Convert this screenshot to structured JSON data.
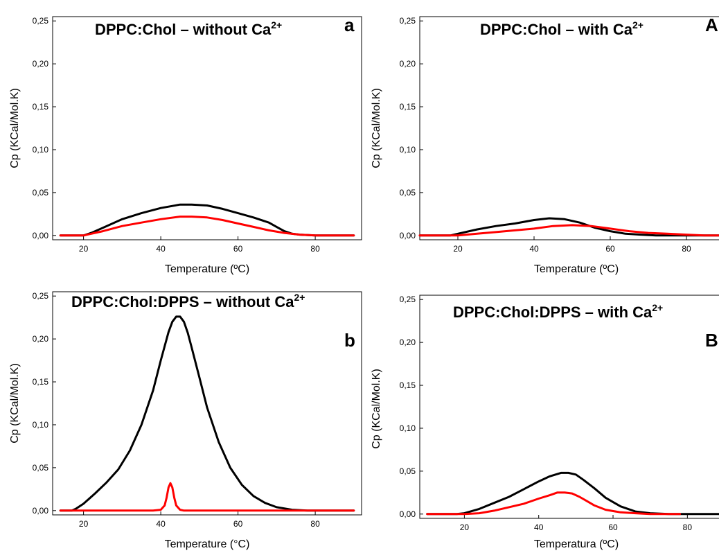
{
  "chart_data": [
    {
      "id": "a",
      "type": "line",
      "title": "DPPC:Chol – without Ca",
      "title_sup": "2+",
      "panel_letter": "a",
      "xlabel": "Temperature (ºC)",
      "ylabel": "Cp (KCal/Mol.K)",
      "xlim": [
        12,
        92
      ],
      "ylim": [
        -0.005,
        0.255
      ],
      "xticks": [
        20,
        40,
        60,
        80
      ],
      "yticks": [
        0.0,
        0.05,
        0.1,
        0.15,
        0.2,
        0.25
      ],
      "ytick_labels": [
        "0,00",
        "0,05",
        "0,10",
        "0,15",
        "0,20",
        "0,25"
      ],
      "series": [
        {
          "color": "#000000",
          "x": [
            14,
            20,
            22,
            25,
            30,
            35,
            40,
            45,
            48,
            52,
            56,
            60,
            64,
            68,
            70,
            72,
            74,
            76,
            80,
            85,
            90
          ],
          "y": [
            0.0,
            0.0,
            0.003,
            0.009,
            0.019,
            0.026,
            0.032,
            0.036,
            0.036,
            0.035,
            0.031,
            0.026,
            0.021,
            0.015,
            0.01,
            0.005,
            0.002,
            0.001,
            0.0,
            0.0,
            0.0
          ]
        },
        {
          "color": "#ff0000",
          "x": [
            14,
            20,
            22,
            25,
            30,
            35,
            40,
            45,
            48,
            52,
            56,
            60,
            64,
            68,
            72,
            76,
            80,
            85,
            90
          ],
          "y": [
            0.0,
            0.0,
            0.002,
            0.005,
            0.011,
            0.015,
            0.019,
            0.022,
            0.022,
            0.021,
            0.018,
            0.014,
            0.01,
            0.006,
            0.003,
            0.001,
            0.0,
            0.0,
            0.0
          ]
        }
      ]
    },
    {
      "id": "A",
      "type": "line",
      "title": "DPPC:Chol – with Ca",
      "title_sup": "2+",
      "panel_letter": "A",
      "xlabel": "Temperature (ºC)",
      "ylabel": "Cp (KCal/Mol.K)",
      "xlim": [
        10,
        90
      ],
      "ylim": [
        -0.005,
        0.255
      ],
      "xticks": [
        20,
        40,
        60,
        80
      ],
      "yticks": [
        0.0,
        0.05,
        0.1,
        0.15,
        0.2,
        0.25
      ],
      "ytick_labels": [
        "0,00",
        "0,05",
        "0,10",
        "0,15",
        "0,20",
        "0,25"
      ],
      "series": [
        {
          "color": "#000000",
          "x": [
            10,
            18,
            20,
            25,
            30,
            35,
            40,
            44,
            48,
            52,
            56,
            60,
            64,
            68,
            72,
            80,
            90
          ],
          "y": [
            0.0,
            0.0,
            0.002,
            0.007,
            0.011,
            0.014,
            0.018,
            0.02,
            0.019,
            0.015,
            0.009,
            0.005,
            0.002,
            0.001,
            0.0,
            0.0,
            0.0
          ]
        },
        {
          "color": "#ff0000",
          "x": [
            10,
            20,
            25,
            30,
            35,
            40,
            45,
            50,
            55,
            60,
            65,
            70,
            75,
            80,
            85,
            90
          ],
          "y": [
            0.0,
            0.0,
            0.002,
            0.004,
            0.006,
            0.008,
            0.011,
            0.012,
            0.011,
            0.008,
            0.005,
            0.003,
            0.002,
            0.001,
            0.0,
            0.0
          ]
        }
      ]
    },
    {
      "id": "b",
      "type": "line",
      "title": "DPPC:Chol:DPPS – without Ca",
      "title_sup": "2+",
      "panel_letter": "b",
      "xlabel": "Temperature (°C)",
      "ylabel": "Cp (KCal/Mol.K)",
      "xlim": [
        12,
        92
      ],
      "ylim": [
        -0.005,
        0.255
      ],
      "xticks": [
        20,
        40,
        60,
        80
      ],
      "yticks": [
        0.0,
        0.05,
        0.1,
        0.15,
        0.2,
        0.25
      ],
      "ytick_labels": [
        "0,00",
        "0,05",
        "0,10",
        "0,15",
        "0,20",
        "0,25"
      ],
      "series": [
        {
          "color": "#000000",
          "x": [
            14,
            17,
            18,
            20,
            23,
            26,
            29,
            32,
            35,
            38,
            40,
            42,
            43,
            44,
            45,
            46,
            47,
            48,
            50,
            52,
            55,
            58,
            61,
            64,
            67,
            70,
            74,
            78,
            85,
            90
          ],
          "y": [
            0.0,
            0.0,
            0.002,
            0.008,
            0.02,
            0.033,
            0.048,
            0.07,
            0.1,
            0.14,
            0.175,
            0.208,
            0.22,
            0.226,
            0.226,
            0.22,
            0.207,
            0.19,
            0.155,
            0.12,
            0.08,
            0.05,
            0.03,
            0.017,
            0.009,
            0.004,
            0.001,
            0.0,
            0.0,
            0.0
          ]
        },
        {
          "color": "#ff0000",
          "x": [
            14,
            20,
            30,
            38,
            40,
            41,
            41.5,
            42,
            42.5,
            43,
            43.5,
            44,
            45,
            46,
            50,
            60,
            70,
            80,
            90
          ],
          "y": [
            0.0,
            0.0,
            0.0,
            0.0,
            0.001,
            0.006,
            0.015,
            0.027,
            0.032,
            0.027,
            0.015,
            0.006,
            0.001,
            0.0,
            0.0,
            0.0,
            0.0,
            0.0,
            0.0
          ]
        }
      ]
    },
    {
      "id": "B",
      "type": "line",
      "title": "DPPC:Chol:DPPS – with Ca",
      "title_sup": "2+",
      "panel_letter": "B",
      "xlabel": "Temperatura (ºC)",
      "ylabel": "Cp (KCal/Mol.K)",
      "xlim": [
        8,
        90
      ],
      "ylim": [
        -0.005,
        0.255
      ],
      "xticks": [
        20,
        40,
        60,
        80
      ],
      "yticks": [
        0.0,
        0.05,
        0.1,
        0.15,
        0.2,
        0.25
      ],
      "ytick_labels": [
        "0,00",
        "0,05",
        "0,10",
        "0,15",
        "0,20",
        "0,25"
      ],
      "series": [
        {
          "color": "#000000",
          "x": [
            10,
            18,
            20,
            24,
            28,
            32,
            36,
            40,
            43,
            46,
            48,
            50,
            52,
            55,
            58,
            62,
            66,
            70,
            75,
            80,
            90
          ],
          "y": [
            0.0,
            0.0,
            0.001,
            0.006,
            0.013,
            0.02,
            0.029,
            0.038,
            0.044,
            0.048,
            0.048,
            0.046,
            0.04,
            0.03,
            0.019,
            0.009,
            0.003,
            0.001,
            0.0,
            0.0,
            0.0
          ]
        },
        {
          "color": "#ff0000",
          "x": [
            10,
            20,
            24,
            28,
            32,
            36,
            40,
            43,
            45,
            47,
            49,
            51,
            53,
            55,
            58,
            62,
            66,
            70,
            78
          ],
          "y": [
            0.0,
            0.0,
            0.001,
            0.004,
            0.008,
            0.012,
            0.018,
            0.022,
            0.025,
            0.025,
            0.024,
            0.02,
            0.015,
            0.01,
            0.005,
            0.002,
            0.001,
            0.0,
            0.0
          ]
        }
      ]
    }
  ]
}
